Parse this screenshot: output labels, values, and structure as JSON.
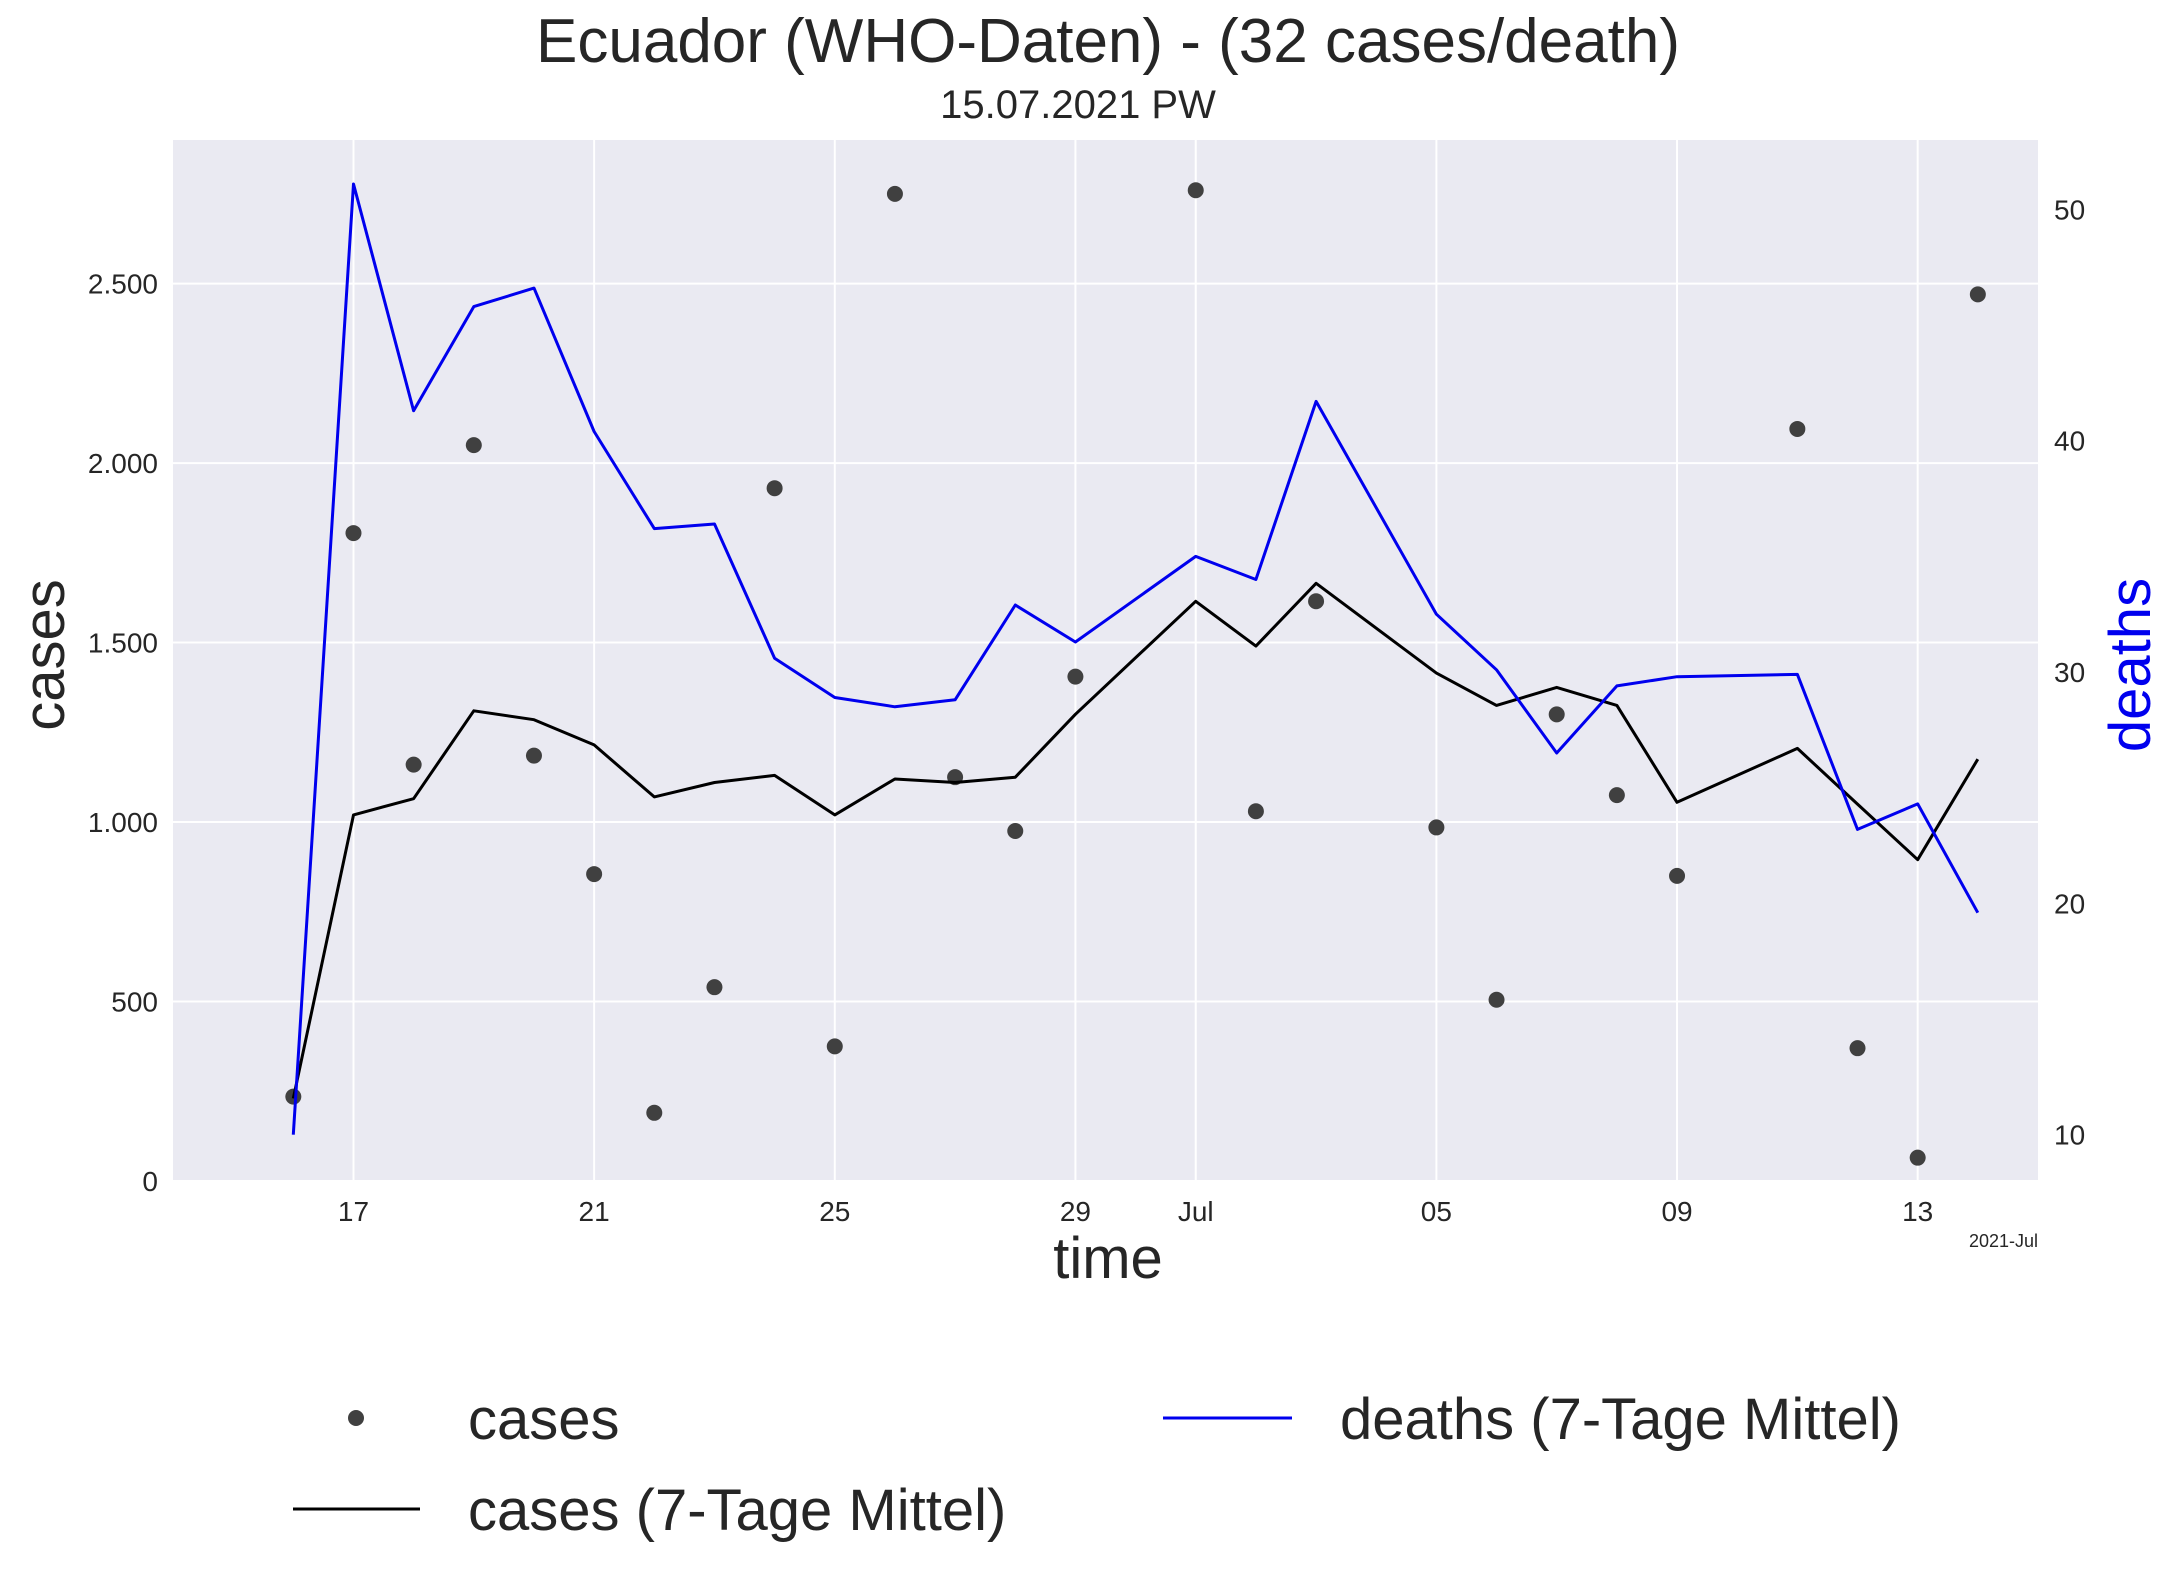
{
  "chart_data": {
    "type": "line",
    "title": "Ecuador (WHO-Daten) - (32 cases/death)",
    "subtitle": "15.07.2021 PW",
    "xlabel": "time",
    "ylabel": "cases",
    "y2label": "deaths",
    "x_offset_label": "2021-Jul",
    "x_range": [
      "2021-06-14",
      "2021-07-15"
    ],
    "ylim": [
      0,
      2900
    ],
    "y2lim": [
      8,
      53
    ],
    "grid": true,
    "legend_position": "bottom",
    "x_ticks": [
      {
        "date": "2021-06-17",
        "label": "17"
      },
      {
        "date": "2021-06-21",
        "label": "21"
      },
      {
        "date": "2021-06-25",
        "label": "25"
      },
      {
        "date": "2021-06-29",
        "label": "29"
      },
      {
        "date": "2021-07-01",
        "label": "Jul"
      },
      {
        "date": "2021-07-05",
        "label": "05"
      },
      {
        "date": "2021-07-09",
        "label": "09"
      },
      {
        "date": "2021-07-13",
        "label": "13"
      }
    ],
    "y_ticks": [
      {
        "value": 0,
        "label": "0"
      },
      {
        "value": 500,
        "label": "500"
      },
      {
        "value": 1000,
        "label": "1.000"
      },
      {
        "value": 1500,
        "label": "1.500"
      },
      {
        "value": 2000,
        "label": "2.000"
      },
      {
        "value": 2500,
        "label": "2.500"
      }
    ],
    "y2_ticks": [
      {
        "value": 10,
        "label": "10"
      },
      {
        "value": 20,
        "label": "20"
      },
      {
        "value": 30,
        "label": "30"
      },
      {
        "value": 40,
        "label": "40"
      },
      {
        "value": 50,
        "label": "50"
      }
    ],
    "x": [
      "2021-06-16",
      "2021-06-17",
      "2021-06-18",
      "2021-06-19",
      "2021-06-20",
      "2021-06-21",
      "2021-06-22",
      "2021-06-23",
      "2021-06-24",
      "2021-06-25",
      "2021-06-26",
      "2021-06-27",
      "2021-06-28",
      "2021-06-29",
      "2021-06-30",
      "2021-07-01",
      "2021-07-02",
      "2021-07-03",
      "2021-07-04",
      "2021-07-05",
      "2021-07-06",
      "2021-07-07",
      "2021-07-08",
      "2021-07-09",
      "2021-07-10",
      "2021-07-11",
      "2021-07-12",
      "2021-07-13",
      "2021-07-14"
    ],
    "series": [
      {
        "name": "cases",
        "kind": "scatter",
        "axis": "left",
        "color": "#404040",
        "values": [
          235,
          1805,
          1160,
          2050,
          1185,
          855,
          190,
          540,
          1930,
          375,
          2750,
          1125,
          975,
          1405,
          null,
          2760,
          1030,
          1615,
          null,
          985,
          505,
          1300,
          1075,
          850,
          null,
          2095,
          370,
          65,
          2470
        ]
      },
      {
        "name": "cases (7-Tage Mittel)",
        "kind": "line",
        "axis": "left",
        "color": "#000000",
        "values": [
          230,
          1020,
          1065,
          1310,
          1285,
          1215,
          1070,
          1110,
          1130,
          1020,
          1120,
          1110,
          1125,
          1300,
          null,
          1615,
          1490,
          1665,
          null,
          1415,
          1325,
          1375,
          1325,
          1055,
          null,
          1205,
          1050,
          895,
          1175
        ]
      },
      {
        "name": "deaths (7-Tage Mittel)",
        "kind": "line",
        "axis": "right",
        "color": "#0000ee",
        "values": [
          10.0,
          51.1,
          41.3,
          45.8,
          46.6,
          40.4,
          36.2,
          36.4,
          30.6,
          28.9,
          28.5,
          28.8,
          32.9,
          31.3,
          null,
          35.0,
          34.0,
          41.7,
          null,
          32.5,
          30.1,
          26.5,
          29.4,
          29.8,
          null,
          29.9,
          23.2,
          24.3,
          19.6
        ]
      }
    ]
  }
}
